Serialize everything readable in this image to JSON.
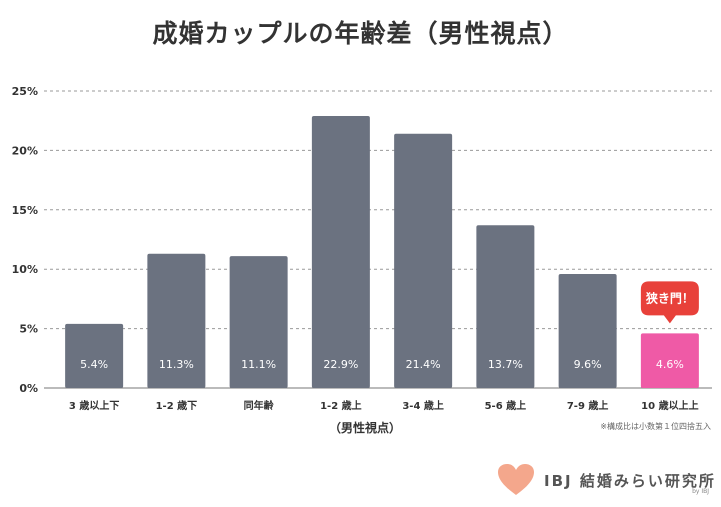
{
  "chart_data": {
    "type": "bar",
    "title": "成婚カップルの年齢差（男性視点）",
    "xlabel": "（男性視点）",
    "ylabel": "",
    "categories": [
      "3 歳以上下",
      "1-2 歳下",
      "同年齢",
      "1-2 歳上",
      "3-4 歳上",
      "5-6 歳上",
      "7-9 歳上",
      "10 歳以上上"
    ],
    "values": [
      5.4,
      11.3,
      11.1,
      22.9,
      21.4,
      13.7,
      9.6,
      4.6
    ],
    "data_labels": [
      "5.4%",
      "11.3%",
      "11.1%",
      "22.9%",
      "21.4%",
      "13.7%",
      "9.6%",
      "4.6%"
    ],
    "ylim": [
      0,
      25
    ],
    "yticks": [
      0,
      5,
      10,
      15,
      20,
      25
    ],
    "ytick_labels": [
      "0%",
      "5%",
      "10%",
      "15%",
      "20%",
      "25%"
    ],
    "grid": true,
    "colors": {
      "bar": "#6b7280",
      "highlight": "#ef5aa6",
      "grid": "#9a9a9a"
    },
    "highlight_index": 7,
    "callout": "狭き門！",
    "note": "※構成比は小数第１位四捨五入"
  },
  "brand": {
    "name": "IBJ 結婚みらい研究所",
    "sub": "by IBJ",
    "icon": "heart-icon"
  }
}
